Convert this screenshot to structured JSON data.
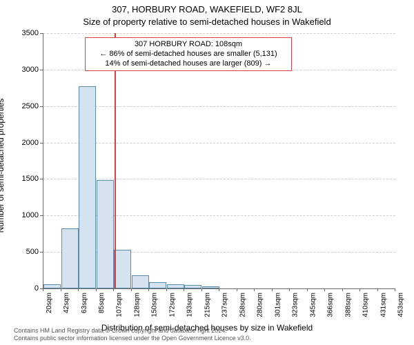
{
  "title_main": "307, HORBURY ROAD, WAKEFIELD, WF2 8JL",
  "title_sub": "Size of property relative to semi-detached houses in Wakefield",
  "y_axis_label": "Number of semi-detached properties",
  "x_axis_label": "Distribution of semi-detached houses by size in Wakefield",
  "chart": {
    "type": "histogram",
    "background_color": "#ffffff",
    "bar_fill": "#d5e3f0",
    "bar_border": "#5a8bb0",
    "grid_color": "#cccccc",
    "axis_color": "#666666",
    "marker_color": "#d94040",
    "title_fontsize": 13,
    "label_fontsize": 12,
    "tick_fontsize": 11,
    "xtick_fontsize": 10,
    "ylim": [
      0,
      3500
    ],
    "ytick_step": 500,
    "x_tick_labels": [
      "20sqm",
      "42sqm",
      "63sqm",
      "85sqm",
      "107sqm",
      "128sqm",
      "150sqm",
      "172sqm",
      "193sqm",
      "215sqm",
      "237sqm",
      "258sqm",
      "280sqm",
      "301sqm",
      "323sqm",
      "345sqm",
      "366sqm",
      "388sqm",
      "410sqm",
      "431sqm",
      "453sqm"
    ],
    "bar_values": [
      60,
      820,
      2770,
      1490,
      530,
      180,
      90,
      60,
      50,
      30,
      0,
      0,
      0,
      0,
      0,
      0,
      0,
      0,
      0,
      0
    ],
    "bar_width_ratio": 0.98,
    "marker_x_value": 108,
    "x_range": [
      20,
      453
    ]
  },
  "annotation": {
    "line1": "307 HORBURY ROAD: 108sqm",
    "line2": "← 86% of semi-detached houses are smaller (5,131)",
    "line3": "14% of semi-detached houses are larger (809) →",
    "border_color": "#d94040",
    "fontsize": 11
  },
  "attribution": {
    "line1": "Contains HM Land Registry data © Crown copyright and database right 2024.",
    "line2": "Contains public sector information licensed under the Open Government Licence v3.0."
  }
}
